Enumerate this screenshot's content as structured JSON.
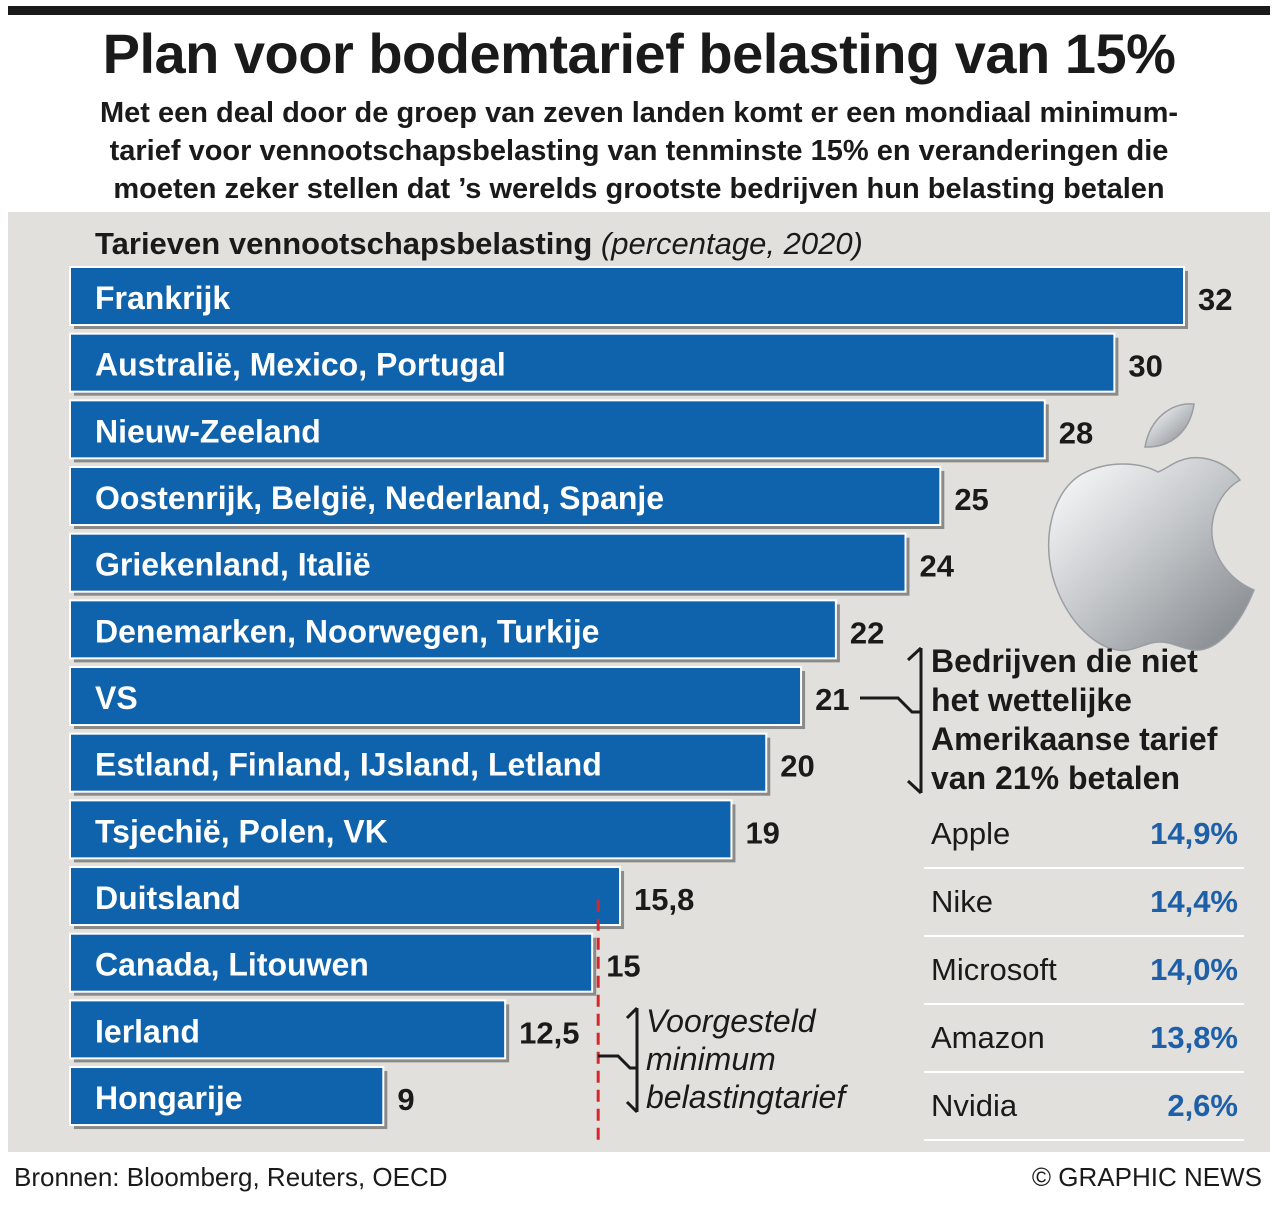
{
  "title": "Plan voor bodemtarief belasting van 15%",
  "subtitle_lines": [
    "Met een deal door de groep van zeven landen komt er een mondiaal  minimum-",
    "tarief voor vennootschapsbelasting van tenminste 15% en veranderingen die",
    "moeten zeker stellen dat ’s werelds grootste bedrijven hun belasting betalen"
  ],
  "colors": {
    "bar": "#0f62ac",
    "bar_edge": "#ffffff",
    "panel": "#e1e0dc",
    "shadow": "#8a8a88",
    "dash": "#d6282b",
    "value_blue": "#1d5fa8"
  },
  "chart_data": {
    "type": "bar",
    "orientation": "horizontal",
    "title": "Tarieven vennootschapsbelasting",
    "title_note": "(percentage, 2020)",
    "categories": [
      "Frankrijk",
      "Australië, Mexico, Portugal",
      "Nieuw-Zeeland",
      "Oostenrijk, België, Nederland, Spanje",
      "Griekenland, Italië",
      "Denemarken, Noorwegen, Turkije",
      "VS",
      "Estland, Finland, IJsland, Letland",
      "Tsjechië, Polen, VK",
      "Duitsland",
      "Canada, Litouwen",
      "Ierland",
      "Hongarije"
    ],
    "values": [
      32,
      30,
      28,
      25,
      24,
      22,
      21,
      20,
      19,
      15.8,
      15,
      12.5,
      9
    ],
    "value_labels": [
      "32",
      "30",
      "28",
      "25",
      "24",
      "22",
      "21",
      "20",
      "19",
      "15,8",
      "15",
      "12,5",
      "9"
    ],
    "reference_line": {
      "value": 15,
      "label_lines": [
        "Voorgesteld",
        "minimum",
        "belastingtarief"
      ]
    },
    "xlim": [
      0,
      32
    ]
  },
  "note_lines": [
    "Bedrijven die niet",
    "het wettelijke",
    "Amerikaanse tarief",
    "van 21% betalen"
  ],
  "companies": [
    {
      "name": "Apple",
      "value": "14,9%"
    },
    {
      "name": "Nike",
      "value": "14,4%"
    },
    {
      "name": "Microsoft",
      "value": "14,0%"
    },
    {
      "name": "Amazon",
      "value": "13,8%"
    },
    {
      "name": "Nvidia",
      "value": "2,6%"
    }
  ],
  "logo_icon": "apple-logo-icon",
  "sources": "Bronnen:  Bloomberg, Reuters, OECD",
  "credit": "© GRAPHIC NEWS"
}
